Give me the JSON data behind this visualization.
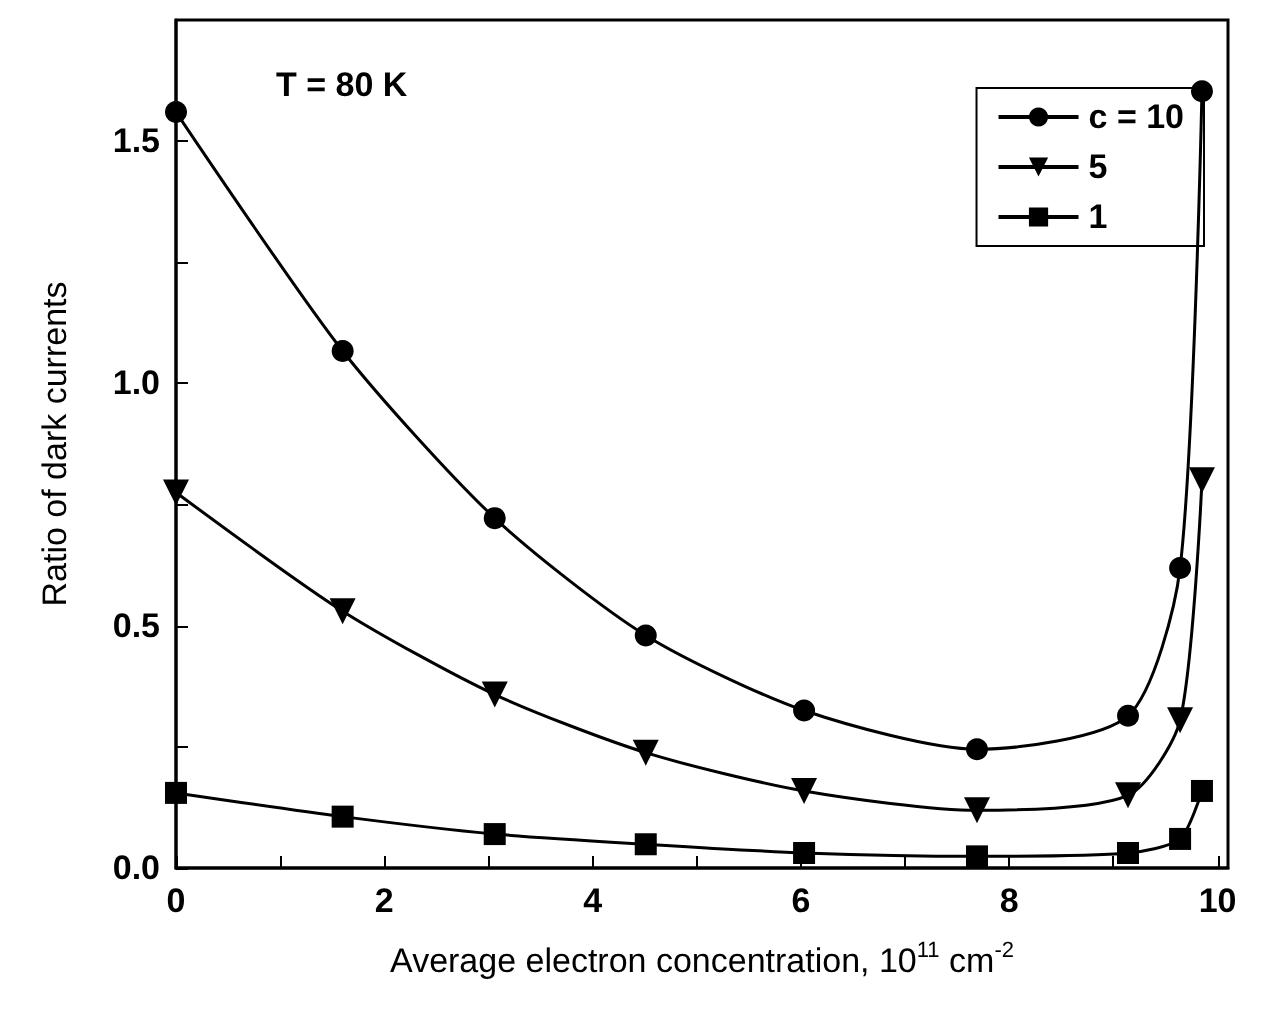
{
  "chart_data": {
    "type": "line",
    "xlabel": "Average electron concentration, 10$^{11}$ cm$^{-2}$",
    "ylabel": "Ratio of dark currents",
    "annotations": [
      "T = 80 K"
    ],
    "x": [
      0,
      1.6,
      3.06,
      4.51,
      6.03,
      7.69,
      9.14,
      9.64,
      9.85
    ],
    "series": [
      {
        "name": "c = 10",
        "color": "#000000",
        "marker": "circle",
        "values": [
          1.56,
          1.067,
          0.722,
          0.48,
          0.325,
          0.245,
          0.314,
          0.619,
          1.603
        ]
      },
      {
        "name": "5",
        "color": "#000000",
        "marker": "triangle",
        "values": [
          0.775,
          0.53,
          0.358,
          0.238,
          0.159,
          0.119,
          0.15,
          0.305,
          0.8
        ]
      },
      {
        "name": "1",
        "color": "#000000",
        "marker": "square",
        "values": [
          0.155,
          0.106,
          0.07,
          0.049,
          0.031,
          0.024,
          0.031,
          0.06,
          0.159
        ]
      }
    ],
    "xlim": [
      0,
      10.1
    ],
    "xticks": [
      0,
      {
        "value": 1,
        "label": null
      },
      2,
      {
        "value": 3,
        "label": null
      },
      4,
      {
        "value": 5,
        "label": null
      },
      6,
      {
        "value": 7,
        "label": null
      },
      8,
      {
        "value": 9,
        "label": null
      },
      10
    ],
    "ylim": [
      0,
      1.75
    ],
    "yticks": [
      "0.0",
      {
        "value": 0.25,
        "label": null
      },
      {
        "value": 0.5,
        "label": "0.5"
      },
      {
        "value": 0.75,
        "label": null
      },
      {
        "value": 1,
        "label": "1.0"
      },
      {
        "value": 1.25,
        "label": null
      },
      {
        "value": 1.5,
        "label": "1.5"
      }
    ],
    "grid": false,
    "legend": "top right",
    "line_style": "solid"
  }
}
